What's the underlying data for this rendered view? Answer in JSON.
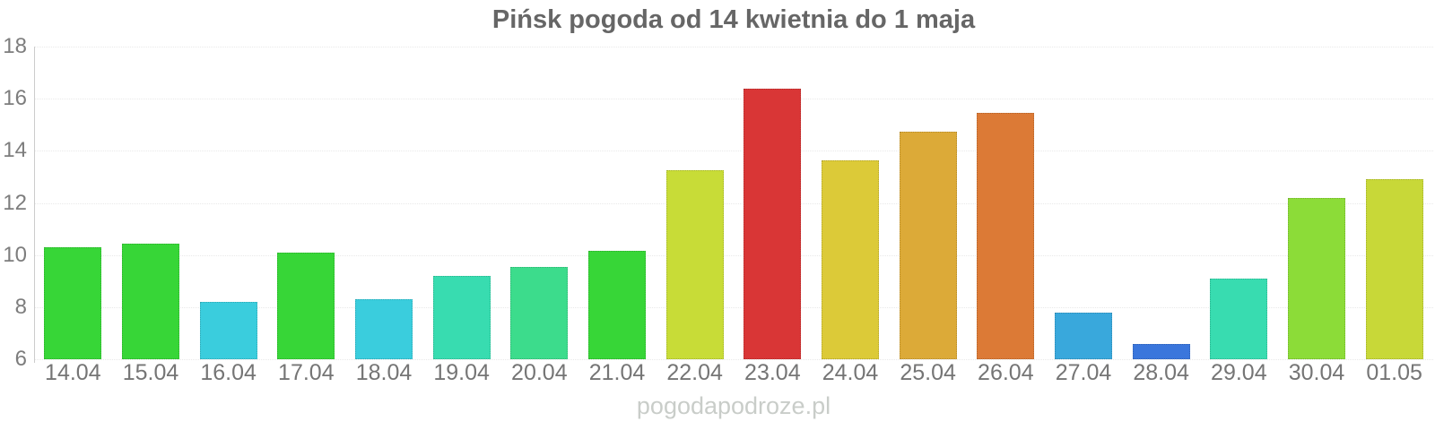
{
  "chart_data": {
    "type": "bar",
    "title": "Pińsk pogoda od 14 kwietnia do 1 maja",
    "watermark": "pogodapodroze.pl",
    "categories": [
      "14.04",
      "15.04",
      "16.04",
      "17.04",
      "18.04",
      "19.04",
      "20.04",
      "21.04",
      "22.04",
      "23.04",
      "24.04",
      "25.04",
      "26.04",
      "27.04",
      "28.04",
      "29.04",
      "30.04",
      "01.05"
    ],
    "values": [
      10.3,
      10.45,
      8.2,
      10.1,
      8.3,
      9.2,
      9.55,
      10.15,
      13.25,
      16.4,
      13.65,
      14.75,
      15.45,
      7.8,
      6.6,
      9.1,
      12.2,
      12.9
    ],
    "bar_colors": [
      "#37d637",
      "#37d637",
      "#3acddd",
      "#37d637",
      "#3acddd",
      "#38dcb0",
      "#3cdc8c",
      "#37d637",
      "#c8dc37",
      "#d93636",
      "#dcca38",
      "#dcaa38",
      "#dc7a36",
      "#39a8dc",
      "#3a76dc",
      "#38dcb0",
      "#8cdc38",
      "#c8d838"
    ],
    "xlabel": "",
    "ylabel": "",
    "ylim": [
      6,
      18
    ],
    "yticks": [
      6,
      8,
      10,
      12,
      14,
      16,
      18
    ],
    "grid": true,
    "legend": "none"
  },
  "colors": {
    "title": "#666666",
    "axis_line": "#cccccc",
    "gridline": "#e9e9e9",
    "tick_label": "#7d7d7d",
    "x_label": "#757575",
    "watermark": "#c9cdc9",
    "background": "#ffffff"
  }
}
